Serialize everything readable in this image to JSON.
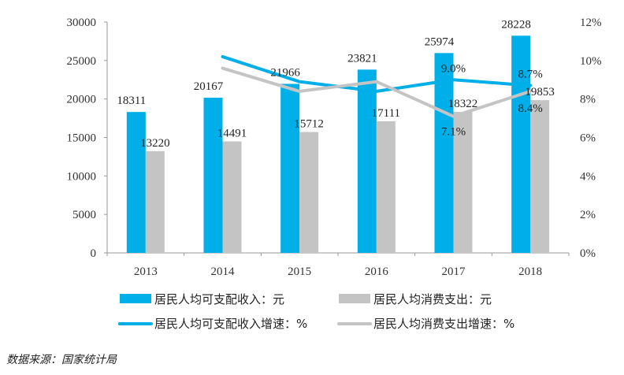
{
  "chart_data": {
    "type": "bar",
    "categories": [
      "2013",
      "2014",
      "2015",
      "2016",
      "2017",
      "2018"
    ],
    "left_axis": {
      "min": 0,
      "max": 30000,
      "ticks": [
        "0",
        "5000",
        "10000",
        "15000",
        "20000",
        "25000",
        "30000"
      ]
    },
    "right_axis": {
      "min": 0,
      "max": 12,
      "ticks": [
        "0%",
        "2%",
        "4%",
        "6%",
        "8%",
        "10%",
        "12%"
      ]
    },
    "bar_series": [
      {
        "name": "居民人均可支配收入：元",
        "color": "#00aee8",
        "values": [
          18311,
          20167,
          21966,
          23821,
          25974,
          28228
        ],
        "labels": [
          "18311",
          "20167",
          "21966",
          "23821",
          "25974",
          "28228"
        ]
      },
      {
        "name": "居民人均消费支出：元",
        "color": "#c4c4c4",
        "values": [
          13220,
          14491,
          15712,
          17111,
          18322,
          19853
        ],
        "labels": [
          "13220",
          "14491",
          "15712",
          "17111",
          "18322",
          "19853"
        ]
      }
    ],
    "line_series": [
      {
        "name": "居民人均可支配收入增速：%",
        "color": "#00aee8",
        "x": [
          "2014",
          "2015",
          "2016",
          "2017",
          "2018"
        ],
        "values": [
          10.2,
          8.9,
          8.4,
          9.0,
          8.7
        ]
      },
      {
        "name": "居民人均消费支出增速：%",
        "color": "#c4c4c4",
        "x": [
          "2014",
          "2015",
          "2016",
          "2017",
          "2018"
        ],
        "values": [
          9.6,
          8.4,
          8.9,
          7.1,
          8.4
        ]
      }
    ],
    "line_labels": [
      {
        "text": "9.0%",
        "category": "2017",
        "value": 9.0
      },
      {
        "text": "7.1%",
        "category": "2017",
        "value": 7.1
      },
      {
        "text": "8.7%",
        "category": "2018",
        "value": 8.7
      },
      {
        "text": "8.4%",
        "category": "2018",
        "value": 8.4
      }
    ],
    "legend_position": "bottom",
    "grid": false
  },
  "source_text": "数据来源：国家统计局"
}
